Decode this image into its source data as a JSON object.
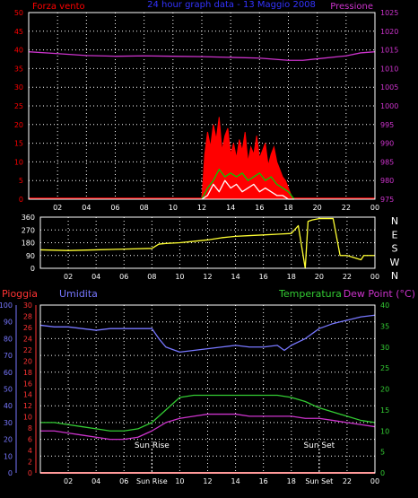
{
  "colors": {
    "background": "#000000",
    "frame": "#ffffff",
    "grid": "#ffffff",
    "wind": "#ff0000",
    "gust": "#00cc00",
    "wind_min": "#ffffff",
    "pressure": "#cc33cc",
    "direction": "#ffff33",
    "direction_last": "#ffff00",
    "rain": "#ff3333",
    "humidity": "#7777ff",
    "temperature": "#33cc33",
    "dewpoint": "#cc33cc",
    "x_tick": "#ffffff"
  },
  "chart_data": [
    {
      "type": "line",
      "title": "24 hour graph data - 13 Maggio 2008",
      "ylabel_left": "Forza vento",
      "ylabel_right": "Pressione",
      "x_ticks": [
        "02",
        "04",
        "06",
        "08",
        "10",
        "12",
        "14",
        "16",
        "18",
        "20",
        "22",
        "00"
      ],
      "xlim": [
        0,
        24
      ],
      "ylim_left": [
        0,
        50
      ],
      "ylim_right": [
        975,
        1025
      ],
      "y_ticks_left": [
        0,
        5,
        10,
        15,
        20,
        25,
        30,
        35,
        40,
        45,
        50
      ],
      "y_ticks_right": [
        975,
        980,
        985,
        990,
        995,
        1000,
        1005,
        1010,
        1015,
        1020,
        1025
      ],
      "grid": true,
      "series": [
        {
          "name": "Pressione",
          "axis": "right",
          "x": [
            0,
            2,
            4,
            6,
            8,
            10,
            12,
            14,
            16,
            18,
            19,
            20,
            22,
            23,
            24
          ],
          "values": [
            1014.5,
            1014,
            1013.5,
            1013.3,
            1013.4,
            1013.3,
            1013.2,
            1013.0,
            1012.8,
            1012.2,
            1012.2,
            1012.6,
            1013.4,
            1014.2,
            1014.5
          ]
        },
        {
          "name": "wind",
          "axis": "left",
          "x": [
            12.0,
            12.2,
            12.4,
            12.6,
            12.8,
            13.0,
            13.2,
            13.4,
            13.6,
            13.8,
            14.0,
            14.2,
            14.4,
            14.6,
            14.8,
            15.0,
            15.2,
            15.4,
            15.6,
            15.8,
            16.0,
            16.2,
            16.4,
            16.6,
            16.8,
            17.0,
            17.2,
            17.4,
            17.6,
            17.8,
            18.0,
            18.2,
            18.4
          ],
          "values": [
            0,
            12,
            18,
            14,
            20,
            16,
            22,
            13,
            17,
            19,
            12,
            15,
            11,
            16,
            13,
            18,
            10,
            14,
            12,
            17,
            11,
            13,
            15,
            9,
            12,
            14,
            10,
            8,
            6,
            5,
            3,
            1,
            0
          ]
        },
        {
          "name": "gust",
          "axis": "left",
          "x": [
            12.0,
            12.4,
            12.8,
            13.2,
            13.6,
            14.0,
            14.4,
            14.8,
            15.2,
            15.6,
            16.0,
            16.4,
            16.8,
            17.2,
            17.6,
            18.0,
            18.4
          ],
          "values": [
            0,
            3,
            5,
            8,
            6,
            7,
            6,
            7,
            5,
            6,
            7,
            5,
            6,
            4,
            3,
            2,
            0
          ]
        },
        {
          "name": "wind_min",
          "axis": "left",
          "x": [
            12.0,
            12.4,
            12.8,
            13.2,
            13.6,
            14.0,
            14.4,
            14.8,
            15.2,
            15.6,
            16.0,
            16.4,
            16.8,
            17.2,
            17.6,
            18.0,
            18.4
          ],
          "values": [
            0,
            1,
            4,
            2,
            5,
            3,
            4,
            2,
            3,
            4,
            2,
            3,
            2,
            1,
            1,
            0,
            0
          ]
        }
      ]
    },
    {
      "type": "line",
      "ylabel_right": "N W S E N",
      "x_ticks": [
        "02",
        "04",
        "06",
        "08",
        "10",
        "12",
        "14",
        "16",
        "18",
        "20",
        "22",
        "00"
      ],
      "xlim": [
        0,
        24
      ],
      "ylim": [
        0,
        360
      ],
      "y_ticks": [
        0,
        90,
        180,
        270,
        360
      ],
      "compass": [
        "N",
        "W",
        "S",
        "E",
        "N"
      ],
      "grid": true,
      "series": [
        {
          "name": "Direzione",
          "x": [
            0,
            2,
            4,
            6,
            8,
            8.5,
            9,
            10,
            11,
            12,
            13,
            14,
            15,
            16,
            17,
            18,
            18.5,
            19,
            19.2,
            19.5,
            20,
            21,
            21.5,
            22,
            23,
            23.2,
            24
          ],
          "values": [
            130,
            125,
            130,
            135,
            140,
            170,
            175,
            180,
            190,
            200,
            215,
            225,
            230,
            235,
            240,
            245,
            300,
            0,
            330,
            340,
            350,
            350,
            90,
            90,
            60,
            90,
            90
          ]
        }
      ]
    },
    {
      "type": "line",
      "labels": [
        "Pioggia",
        "Umidita",
        "Temperatura",
        "Dew Point (°C)"
      ],
      "x_ticks": [
        "02",
        "04",
        "06",
        "Sun Rise",
        "10",
        "12",
        "14",
        "16",
        "18",
        "Sun Set",
        "22",
        "00"
      ],
      "annotations": [
        "Sun Rise",
        "Sun Set"
      ],
      "xlim": [
        0,
        24
      ],
      "ylim_humidity": [
        0,
        100
      ],
      "ylim_rain": [
        0,
        30
      ],
      "ylim_temperature": [
        0,
        40
      ],
      "y_ticks_humidity": [
        0,
        10,
        20,
        30,
        40,
        50,
        60,
        70,
        80,
        90,
        100
      ],
      "y_ticks_rain": [
        0,
        2,
        4,
        6,
        8,
        10,
        12,
        14,
        16,
        18,
        20,
        22,
        24,
        26,
        28,
        30
      ],
      "y_ticks_temperature": [
        0,
        5,
        10,
        15,
        20,
        25,
        30,
        35,
        40
      ],
      "grid": true,
      "series": [
        {
          "name": "Pioggia",
          "axis": "rain",
          "x": [
            0,
            24
          ],
          "values": [
            0,
            0
          ]
        },
        {
          "name": "Umidita",
          "axis": "humidity",
          "x": [
            0,
            1,
            2,
            3,
            4,
            5,
            6,
            7,
            8,
            8.5,
            9,
            10,
            11,
            12,
            13,
            14,
            15,
            16,
            17,
            17.5,
            18,
            19,
            20,
            21,
            22,
            23,
            24
          ],
          "values": [
            88,
            87,
            87,
            86,
            85,
            86,
            86,
            86,
            86,
            80,
            75,
            72,
            73,
            74,
            75,
            76,
            75,
            75,
            76,
            73,
            76,
            80,
            86,
            89,
            91,
            93,
            94
          ]
        },
        {
          "name": "Temperatura",
          "axis": "temperature",
          "x": [
            0,
            1,
            2,
            3,
            4,
            5,
            6,
            7,
            8,
            9,
            10,
            11,
            12,
            13,
            14,
            15,
            16,
            17,
            18,
            19,
            20,
            21,
            22,
            23,
            24
          ],
          "values": [
            12,
            12,
            11.5,
            11,
            10.5,
            10,
            10,
            10.5,
            12,
            15,
            18,
            18.5,
            18.5,
            18.5,
            18.5,
            18.5,
            18.5,
            18.5,
            18,
            17,
            15.5,
            14.5,
            13.5,
            12.5,
            12
          ]
        },
        {
          "name": "Dew Point",
          "axis": "temperature",
          "x": [
            0,
            1,
            2,
            3,
            4,
            5,
            6,
            7,
            8,
            9,
            10,
            11,
            12,
            13,
            14,
            15,
            16,
            17,
            18,
            19,
            20,
            21,
            22,
            23,
            24
          ],
          "values": [
            10,
            10,
            9.5,
            9,
            8.5,
            8,
            8,
            8.5,
            10,
            12,
            13,
            13.5,
            14,
            14,
            14,
            13.5,
            13.5,
            13.5,
            13.5,
            13,
            13,
            12.5,
            12,
            11.5,
            11
          ]
        }
      ]
    }
  ]
}
